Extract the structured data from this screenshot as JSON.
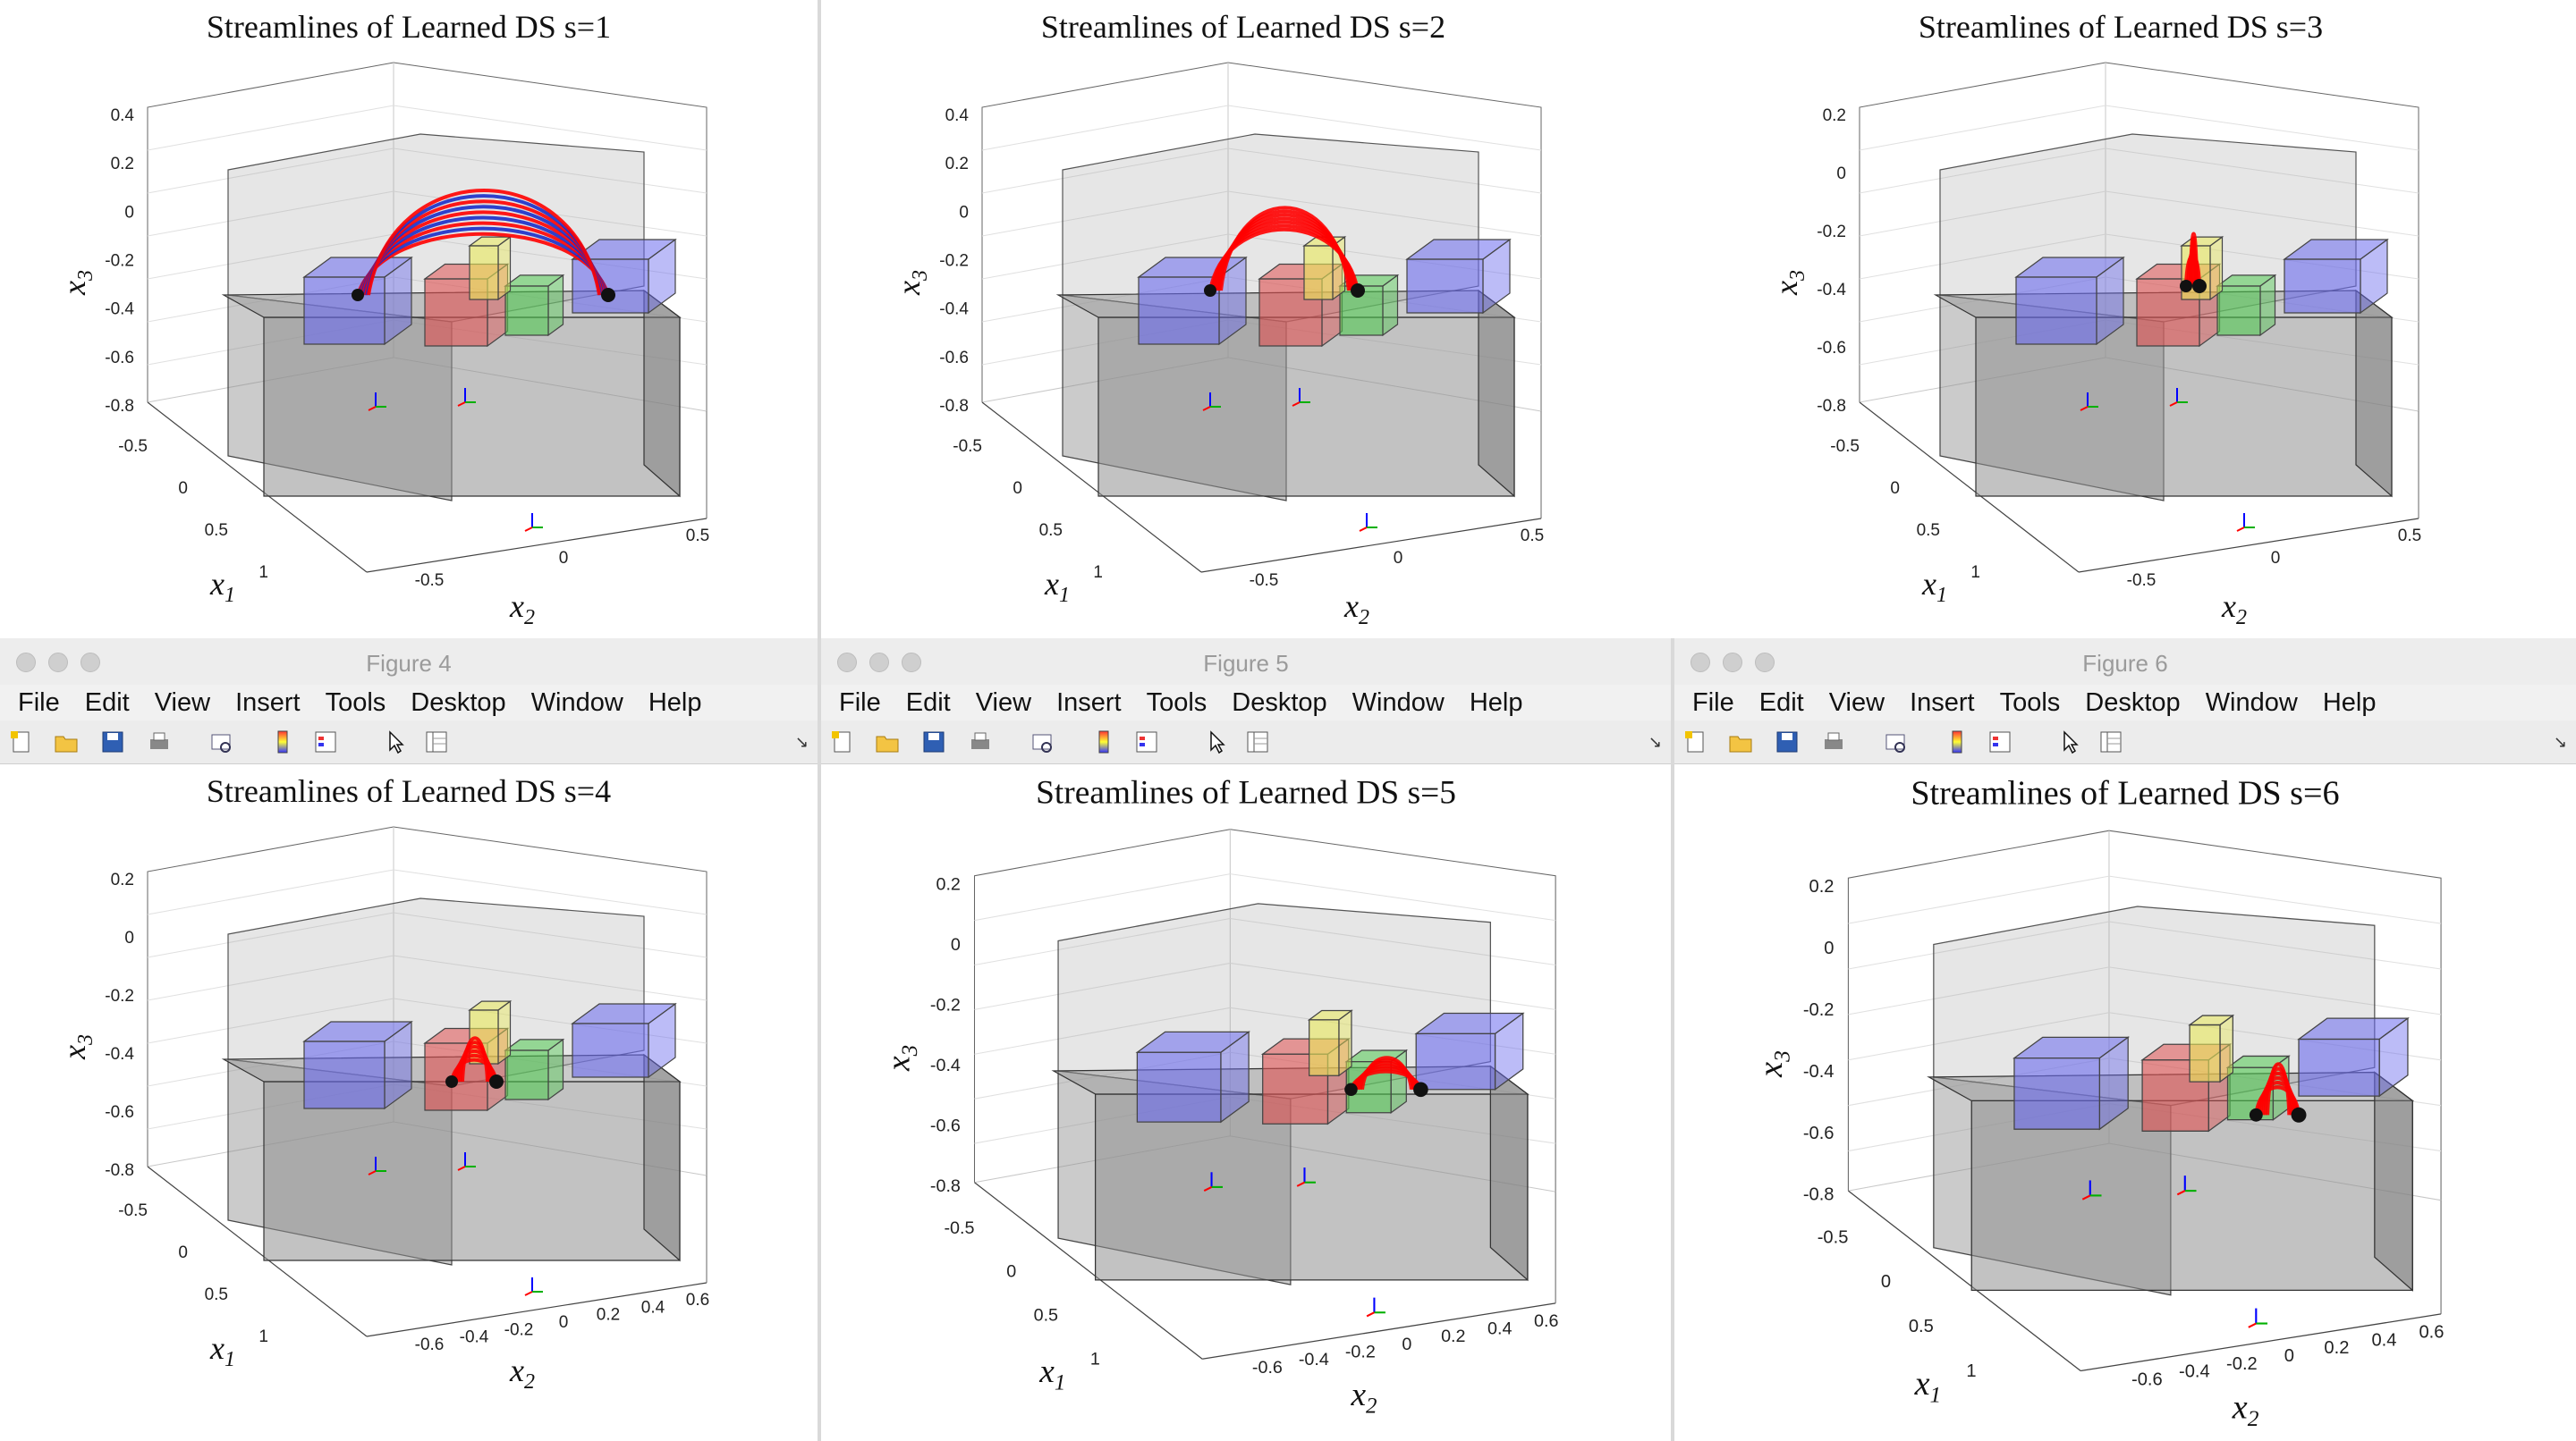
{
  "menu": [
    "File",
    "Edit",
    "View",
    "Insert",
    "Tools",
    "Desktop",
    "Window",
    "Help"
  ],
  "toolbar_icons": [
    "new-figure-icon",
    "open-file-icon",
    "save-icon",
    "print-icon",
    "link-plot-icon",
    "colorbar-icon",
    "legend-icon",
    "edit-plot-icon",
    "property-inspector-icon"
  ],
  "axis": {
    "x1_label": "x",
    "x1_sub": "1",
    "x2_label": "x",
    "x2_sub": "2",
    "x3_label": "x",
    "x3_sub": "3"
  },
  "colors": {
    "blue_box": "#6a6aee",
    "red_box": "#e05050",
    "green_box": "#50c850",
    "yellow_box": "#eaea5a",
    "table": "#9a9a9a",
    "stream_red": "#ff0000",
    "stream_blue": "#1a2ec8"
  },
  "windows": [
    {
      "figure_title": "",
      "plot_title": "Streamlines of Learned DS s=1",
      "x3_ticks": [
        "0.4",
        "0.2",
        "0",
        "-0.2",
        "-0.4",
        "-0.6",
        "-0.8"
      ],
      "x1_ticks": [
        "-0.5",
        "0",
        "0.5",
        "1"
      ],
      "x2_ticks": [
        "-0.5",
        "0",
        "0.5"
      ]
    },
    {
      "figure_title": "",
      "plot_title": "Streamlines of Learned DS s=2",
      "x3_ticks": [
        "0.4",
        "0.2",
        "0",
        "-0.2",
        "-0.4",
        "-0.6",
        "-0.8"
      ],
      "x1_ticks": [
        "-0.5",
        "0",
        "0.5",
        "1"
      ],
      "x2_ticks": [
        "-0.5",
        "0",
        "0.5"
      ]
    },
    {
      "figure_title": "",
      "plot_title": "Streamlines of Learned DS s=3",
      "x3_ticks": [
        "0.2",
        "0",
        "-0.2",
        "-0.4",
        "-0.6",
        "-0.8"
      ],
      "x1_ticks": [
        "-0.5",
        "0",
        "0.5",
        "1"
      ],
      "x2_ticks": [
        "-0.5",
        "0",
        "0.5"
      ]
    },
    {
      "figure_title": "Figure 4",
      "plot_title": "Streamlines of Learned DS s=4",
      "x3_ticks": [
        "0.2",
        "0",
        "-0.2",
        "-0.4",
        "-0.6",
        "-0.8"
      ],
      "x1_ticks": [
        "-0.5",
        "0",
        "0.5",
        "1"
      ],
      "x2_ticks": [
        "-0.6",
        "-0.4",
        "-0.2",
        "0",
        "0.2",
        "0.4",
        "0.6"
      ]
    },
    {
      "figure_title": "Figure 5",
      "plot_title": "Streamlines of Learned DS s=5",
      "x3_ticks": [
        "0.2",
        "0",
        "-0.2",
        "-0.4",
        "-0.6",
        "-0.8"
      ],
      "x1_ticks": [
        "-0.5",
        "0",
        "0.5",
        "1"
      ],
      "x2_ticks": [
        "-0.6",
        "-0.4",
        "-0.2",
        "0",
        "0.2",
        "0.4",
        "0.6"
      ]
    },
    {
      "figure_title": "Figure 6",
      "plot_title": "Streamlines of Learned DS s=6",
      "x3_ticks": [
        "0.2",
        "0",
        "-0.2",
        "-0.4",
        "-0.6",
        "-0.8"
      ],
      "x1_ticks": [
        "-0.5",
        "0",
        "0.5",
        "1"
      ],
      "x2_ticks": [
        "-0.6",
        "-0.4",
        "-0.2",
        "0",
        "0.2",
        "0.4",
        "0.6"
      ]
    }
  ]
}
